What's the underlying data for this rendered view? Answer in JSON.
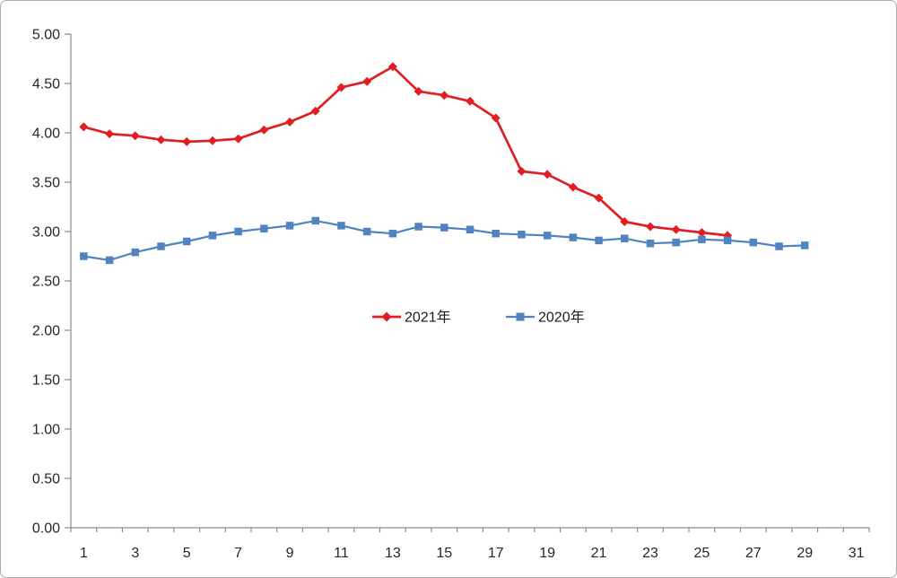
{
  "chart_data": {
    "type": "line",
    "title": "",
    "xlabel": "",
    "ylabel": "",
    "grid": false,
    "x_categories": [
      1,
      2,
      3,
      4,
      5,
      6,
      7,
      8,
      9,
      10,
      11,
      12,
      13,
      14,
      15,
      16,
      17,
      18,
      19,
      20,
      21,
      22,
      23,
      24,
      25,
      26,
      27,
      28,
      29,
      30,
      31
    ],
    "x_tick_labels": [
      "1",
      "3",
      "5",
      "7",
      "9",
      "11",
      "13",
      "15",
      "17",
      "19",
      "21",
      "23",
      "25",
      "27",
      "29",
      "31"
    ],
    "ylim": [
      0.0,
      5.0
    ],
    "y_tick_step": 0.5,
    "y_tick_labels": [
      "0.00",
      "0.50",
      "1.00",
      "1.50",
      "2.00",
      "2.50",
      "3.00",
      "3.50",
      "4.00",
      "4.50",
      "5.00"
    ],
    "legend_position": "inside-center",
    "series": [
      {
        "name": "2021年",
        "color": "#e01f23",
        "marker": "diamond",
        "start_x": 1,
        "values": [
          4.06,
          3.99,
          3.97,
          3.93,
          3.91,
          3.92,
          3.94,
          4.03,
          4.11,
          4.22,
          4.46,
          4.52,
          4.67,
          4.42,
          4.38,
          4.32,
          4.15,
          3.61,
          3.58,
          3.45,
          3.34,
          3.1,
          3.05,
          3.02,
          2.99,
          2.96
        ]
      },
      {
        "name": "2020年",
        "color": "#5083bf",
        "marker": "square",
        "start_x": 1,
        "values": [
          2.75,
          2.71,
          2.79,
          2.85,
          2.9,
          2.96,
          3.0,
          3.03,
          3.06,
          3.11,
          3.06,
          3.0,
          2.98,
          3.05,
          3.04,
          3.02,
          2.98,
          2.97,
          2.96,
          2.94,
          2.91,
          2.93,
          2.88,
          2.89,
          2.92,
          2.91,
          2.89,
          2.85,
          2.86
        ]
      }
    ],
    "colors": {
      "axis": "#8c8c8c",
      "tick_text": "#262626",
      "background": "#ffffff",
      "frame_border": "#ababab"
    }
  }
}
